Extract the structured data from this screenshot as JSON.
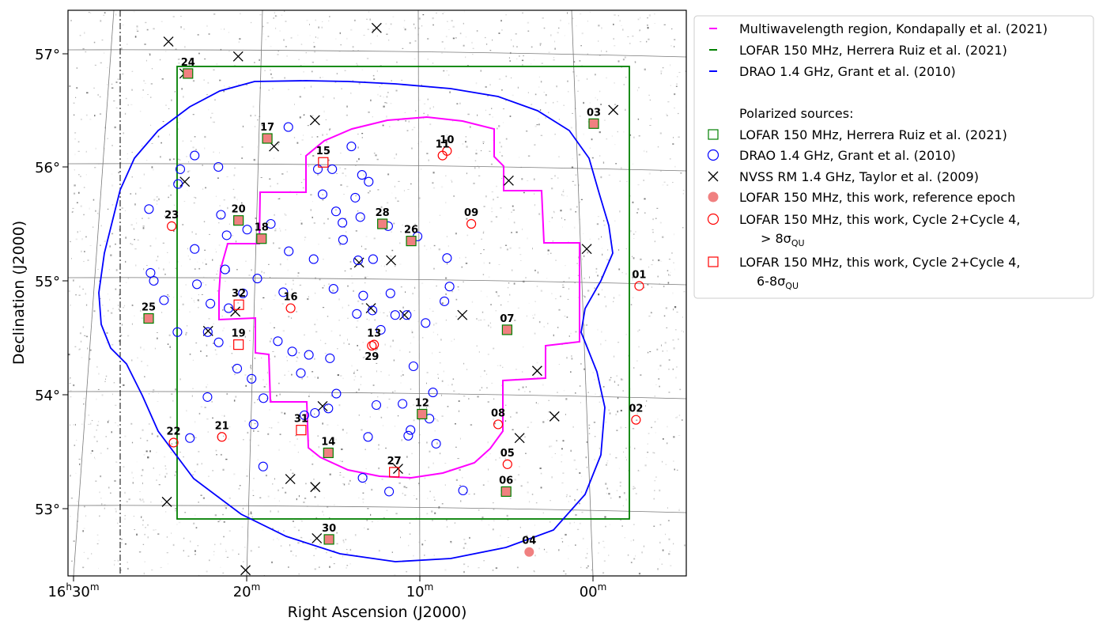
{
  "chart_data": {
    "type": "scatter",
    "xlabel": "Right Ascension (J2000)",
    "ylabel": "Declination (J2000)",
    "x_ticks": [
      "16h30m",
      "20m",
      "10m",
      "00m"
    ],
    "y_ticks": [
      "57°",
      "56°",
      "55°",
      "54°",
      "53°"
    ],
    "colors": {
      "multiwavelength": "#ff00ff",
      "lofar_hr": "#008000",
      "drao": "#0000ff",
      "nvss": "#000000",
      "this_work": "#ff0000",
      "this_work_fill": "#f08080"
    },
    "legend": {
      "placement": "outside-right",
      "regions": [
        {
          "key": "multiwavelength",
          "label": "Multiwavelength region, Kondapally et al. (2021)"
        },
        {
          "key": "lofar_hr",
          "label": "LOFAR 150 MHz, Herrera Ruiz et al. (2021)"
        },
        {
          "key": "drao",
          "label": "DRAO 1.4 GHz, Grant et al. (2010)"
        }
      ],
      "sources_header": "Polarized sources:",
      "sources": [
        {
          "marker": "square",
          "key": "lofar_hr",
          "label": "LOFAR 150 MHz, Herrera Ruiz et al. (2021)"
        },
        {
          "marker": "circle",
          "key": "drao",
          "label": "DRAO 1.4 GHz, Grant et al. (2010)"
        },
        {
          "marker": "x",
          "key": "nvss",
          "label": "NVSS RM 1.4 GHz, Taylor et al. (2009)"
        },
        {
          "marker": "filled-circle",
          "key": "this_work_fill",
          "label": "LOFAR 150 MHz, this work, reference epoch"
        },
        {
          "marker": "circle",
          "key": "this_work",
          "label": "LOFAR 150 MHz, this work, Cycle 2+Cycle 4,",
          "label2": "> 8σ",
          "sub": "QU"
        },
        {
          "marker": "square",
          "key": "this_work",
          "label": "LOFAR 150 MHz, this work, Cycle 2+Cycle 4,",
          "label2": "6-8σ",
          "sub": "QU"
        }
      ]
    },
    "this_work_sources": [
      {
        "id": "01",
        "ra": 16.0,
        "dec": 54.955,
        "type": "circle"
      },
      {
        "id": "02",
        "ra": 17.0,
        "dec": 53.78,
        "type": "circle"
      },
      {
        "id": "03",
        "ra": 30.2,
        "dec": 56.38,
        "type": "filled-square"
      },
      {
        "id": "04",
        "ra": 50.4,
        "dec": 52.62,
        "type": "filled-circle"
      },
      {
        "id": "05",
        "ra": 57.2,
        "dec": 53.39,
        "type": "circle"
      },
      {
        "id": "06",
        "ra": 57.6,
        "dec": 53.15,
        "type": "filled-square"
      },
      {
        "id": "07",
        "ra": 57.3,
        "dec": 54.57,
        "type": "filled-square"
      },
      {
        "id": "08",
        "ra": 60.1,
        "dec": 53.74,
        "type": "circle"
      },
      {
        "id": "09",
        "ra": 68.5,
        "dec": 55.5,
        "type": "circle"
      },
      {
        "id": "10",
        "ra": 76.1,
        "dec": 56.14,
        "type": "circle"
      },
      {
        "id": "11",
        "ra": 77.5,
        "dec": 56.1,
        "type": "circle"
      },
      {
        "id": "12",
        "ra": 83.9,
        "dec": 53.83,
        "type": "filled-square"
      },
      {
        "id": "13",
        "ra": 98.9,
        "dec": 54.44,
        "type": "circle"
      },
      {
        "id": "14",
        "ra": 113.2,
        "dec": 53.49,
        "type": "filled-square"
      },
      {
        "id": "15",
        "ra": 114.8,
        "dec": 56.04,
        "type": "square"
      },
      {
        "id": "16",
        "ra": 125.0,
        "dec": 54.76,
        "type": "circle"
      },
      {
        "id": "17",
        "ra": 132.3,
        "dec": 56.25,
        "type": "filled-square"
      },
      {
        "id": "18",
        "ra": 134.1,
        "dec": 55.37,
        "type": "filled-square"
      },
      {
        "id": "19",
        "ra": 141.3,
        "dec": 54.44,
        "type": "square"
      },
      {
        "id": "20",
        "ra": 141.3,
        "dec": 55.53,
        "type": "filled-square"
      },
      {
        "id": "21",
        "ra": 146.5,
        "dec": 53.63,
        "type": "circle"
      },
      {
        "id": "22",
        "ra": 161.6,
        "dec": 53.58,
        "type": "circle"
      },
      {
        "id": "23",
        "ra": 162.2,
        "dec": 55.48,
        "type": "circle"
      },
      {
        "id": "24",
        "ra": 157.1,
        "dec": 56.82,
        "type": "filled-square"
      },
      {
        "id": "25",
        "ra": 169.4,
        "dec": 54.67,
        "type": "filled-square"
      },
      {
        "id": "26",
        "ra": 87.3,
        "dec": 55.35,
        "type": "filled-square"
      },
      {
        "id": "27",
        "ra": 92.6,
        "dec": 53.32,
        "type": "square"
      },
      {
        "id": "28",
        "ra": 96.3,
        "dec": 55.5,
        "type": "filled-square"
      },
      {
        "id": "29",
        "ra": 99.6,
        "dec": 54.43,
        "type": "circle"
      },
      {
        "id": "30",
        "ra": 113.0,
        "dec": 52.73,
        "type": "filled-square"
      },
      {
        "id": "31",
        "ra": 121.7,
        "dec": 53.69,
        "type": "square"
      },
      {
        "id": "32",
        "ra": 141.2,
        "dec": 54.79,
        "type": "square"
      }
    ],
    "drao_sources": [
      [
        125.7,
        56.35
      ],
      [
        155.0,
        56.1
      ],
      [
        131.2,
        55.5
      ],
      [
        138.6,
        55.45
      ],
      [
        111.6,
        54.93
      ],
      [
        99.4,
        54.74
      ],
      [
        117.4,
        53.84
      ],
      [
        88.2,
        53.64
      ],
      [
        103.2,
        55.56
      ],
      [
        82.8,
        54.63
      ],
      [
        90.0,
        53.92
      ],
      [
        112.7,
        54.32
      ],
      [
        76.1,
        55.2
      ],
      [
        94.5,
        55.48
      ],
      [
        150.1,
        54.8
      ],
      [
        121.8,
        54.19
      ],
      [
        160.4,
        54.55
      ],
      [
        145.0,
        55.4
      ],
      [
        106.0,
        56.18
      ],
      [
        93.8,
        54.89
      ],
      [
        135.4,
        55.02
      ],
      [
        116.5,
        55.98
      ],
      [
        154.3,
        54.97
      ],
      [
        110.8,
        55.61
      ],
      [
        124.5,
        54.38
      ],
      [
        136.6,
        53.74
      ],
      [
        102.3,
        54.87
      ],
      [
        99.2,
        55.19
      ],
      [
        108.8,
        55.51
      ],
      [
        86.6,
        54.25
      ],
      [
        129.0,
        54.47
      ],
      [
        98.2,
        53.91
      ],
      [
        80.5,
        54.02
      ],
      [
        144.4,
        54.76
      ],
      [
        139.9,
        54.89
      ],
      [
        92.3,
        54.7
      ],
      [
        102.7,
        55.93
      ],
      [
        104.8,
        55.73
      ],
      [
        112.0,
        55.98
      ],
      [
        119.3,
        54.35
      ],
      [
        88.7,
        54.7
      ],
      [
        115.0,
        55.76
      ],
      [
        125.6,
        55.26
      ],
      [
        85.3,
        55.39
      ],
      [
        127.3,
        54.9
      ],
      [
        150.9,
        54.55
      ],
      [
        155.0,
        55.28
      ],
      [
        145.5,
        55.1
      ],
      [
        133.5,
        53.97
      ],
      [
        87.5,
        53.69
      ],
      [
        81.6,
        53.79
      ],
      [
        100.6,
        55.87
      ],
      [
        110.7,
        54.01
      ],
      [
        104.3,
        54.71
      ],
      [
        75.3,
        54.95
      ],
      [
        100.8,
        53.63
      ],
      [
        117.8,
        55.19
      ],
      [
        108.6,
        55.36
      ],
      [
        141.7,
        54.23
      ],
      [
        113.2,
        53.88
      ],
      [
        96.8,
        54.57
      ],
      [
        102.5,
        53.27
      ],
      [
        76.9,
        54.82
      ],
      [
        94.2,
        53.15
      ],
      [
        120.7,
        53.82
      ],
      [
        79.5,
        53.57
      ],
      [
        147.6,
        56.0
      ],
      [
        146.8,
        55.58
      ],
      [
        160.2,
        55.85
      ],
      [
        159.5,
        55.98
      ],
      [
        169.3,
        55.63
      ],
      [
        133.6,
        53.37
      ],
      [
        151.0,
        53.98
      ],
      [
        156.5,
        53.62
      ],
      [
        137.2,
        54.14
      ],
      [
        147.5,
        54.46
      ],
      [
        164.6,
        54.83
      ],
      [
        167.8,
        55.0
      ],
      [
        168.8,
        55.07
      ],
      [
        103.9,
        55.18
      ],
      [
        71.1,
        53.16
      ]
    ],
    "nvss_sources": [
      [
        163.2,
        57.1
      ],
      [
        98.1,
        57.22
      ],
      [
        141.4,
        56.97
      ],
      [
        117.4,
        56.41
      ],
      [
        158.1,
        55.87
      ],
      [
        130.2,
        56.18
      ],
      [
        103.6,
        55.16
      ],
      [
        53.4,
        53.62
      ],
      [
        24.1,
        56.5
      ],
      [
        56.8,
        55.88
      ],
      [
        32.4,
        55.28
      ],
      [
        42.5,
        53.81
      ],
      [
        163.7,
        53.06
      ],
      [
        139.1,
        52.46
      ],
      [
        117.3,
        53.19
      ],
      [
        125.1,
        53.26
      ],
      [
        115.0,
        53.9
      ],
      [
        89.4,
        54.7
      ],
      [
        93.6,
        55.18
      ],
      [
        47.9,
        54.21
      ],
      [
        99.9,
        54.76
      ],
      [
        71.3,
        54.7
      ],
      [
        91.4,
        53.35
      ],
      [
        116.8,
        52.74
      ],
      [
        158.2,
        56.82
      ],
      [
        142.3,
        54.73
      ],
      [
        150.8,
        54.56
      ]
    ]
  }
}
